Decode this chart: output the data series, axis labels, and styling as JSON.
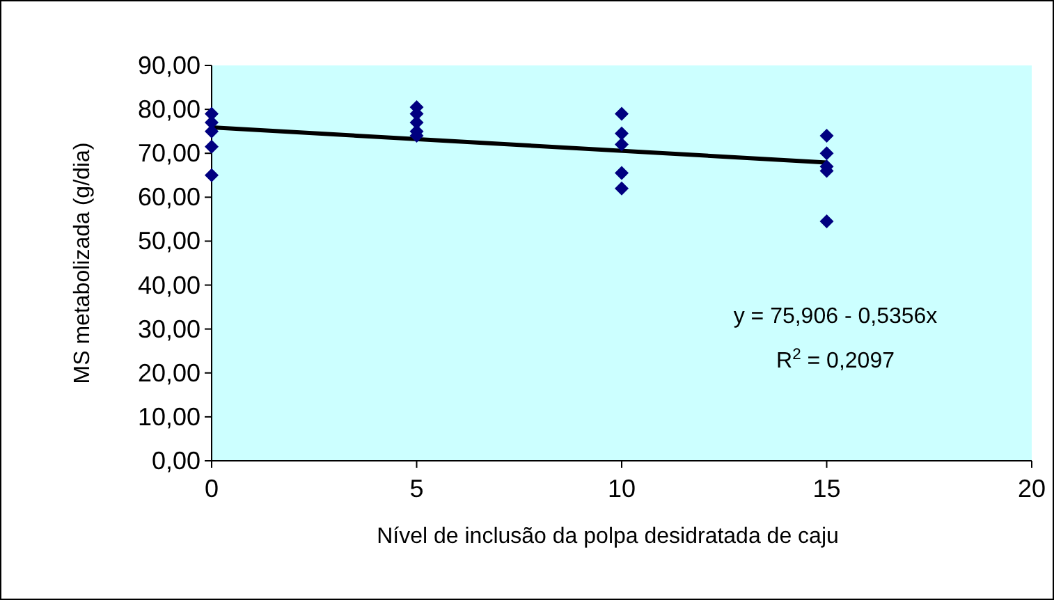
{
  "chart_data": {
    "type": "scatter",
    "xlabel": "Nível de inclusão da polpa desidratada de caju",
    "ylabel": "MS metabolizada (g/dia)",
    "xlim": [
      0,
      20
    ],
    "xticks": [
      0,
      5,
      10,
      15,
      20
    ],
    "ylim": [
      0,
      90
    ],
    "yticks": [
      {
        "value": 0,
        "label": "0,00"
      },
      {
        "value": 10,
        "label": "10,00"
      },
      {
        "value": 20,
        "label": "20,00"
      },
      {
        "value": 30,
        "label": "30,00"
      },
      {
        "value": 40,
        "label": "40,00"
      },
      {
        "value": 50,
        "label": "50,00"
      },
      {
        "value": 60,
        "label": "60,00"
      },
      {
        "value": 70,
        "label": "70,00"
      },
      {
        "value": 80,
        "label": "80,00"
      },
      {
        "value": 90,
        "label": "90,00"
      }
    ],
    "grid": false,
    "marker": "diamond",
    "series": [
      {
        "type": "scatter",
        "color": "#000080",
        "x": [
          0,
          0,
          0,
          0,
          0,
          5,
          5,
          5,
          5,
          5,
          10,
          10,
          10,
          10,
          10,
          15,
          15,
          15,
          15,
          15
        ],
        "values": [
          79,
          77,
          75,
          71.5,
          65,
          80.5,
          79,
          77,
          75,
          74,
          79,
          74.5,
          72,
          65.5,
          62,
          74,
          70,
          67,
          66,
          54.5
        ]
      },
      {
        "type": "line",
        "color": "#000000",
        "x": [
          0,
          15
        ],
        "values": [
          75.9,
          67.9
        ],
        "marker": "none",
        "line_style": "solid"
      }
    ],
    "annotations": [
      "y = 75,906 - 0,5356x",
      "R$^{2}$ = 0,2097"
    ]
  }
}
